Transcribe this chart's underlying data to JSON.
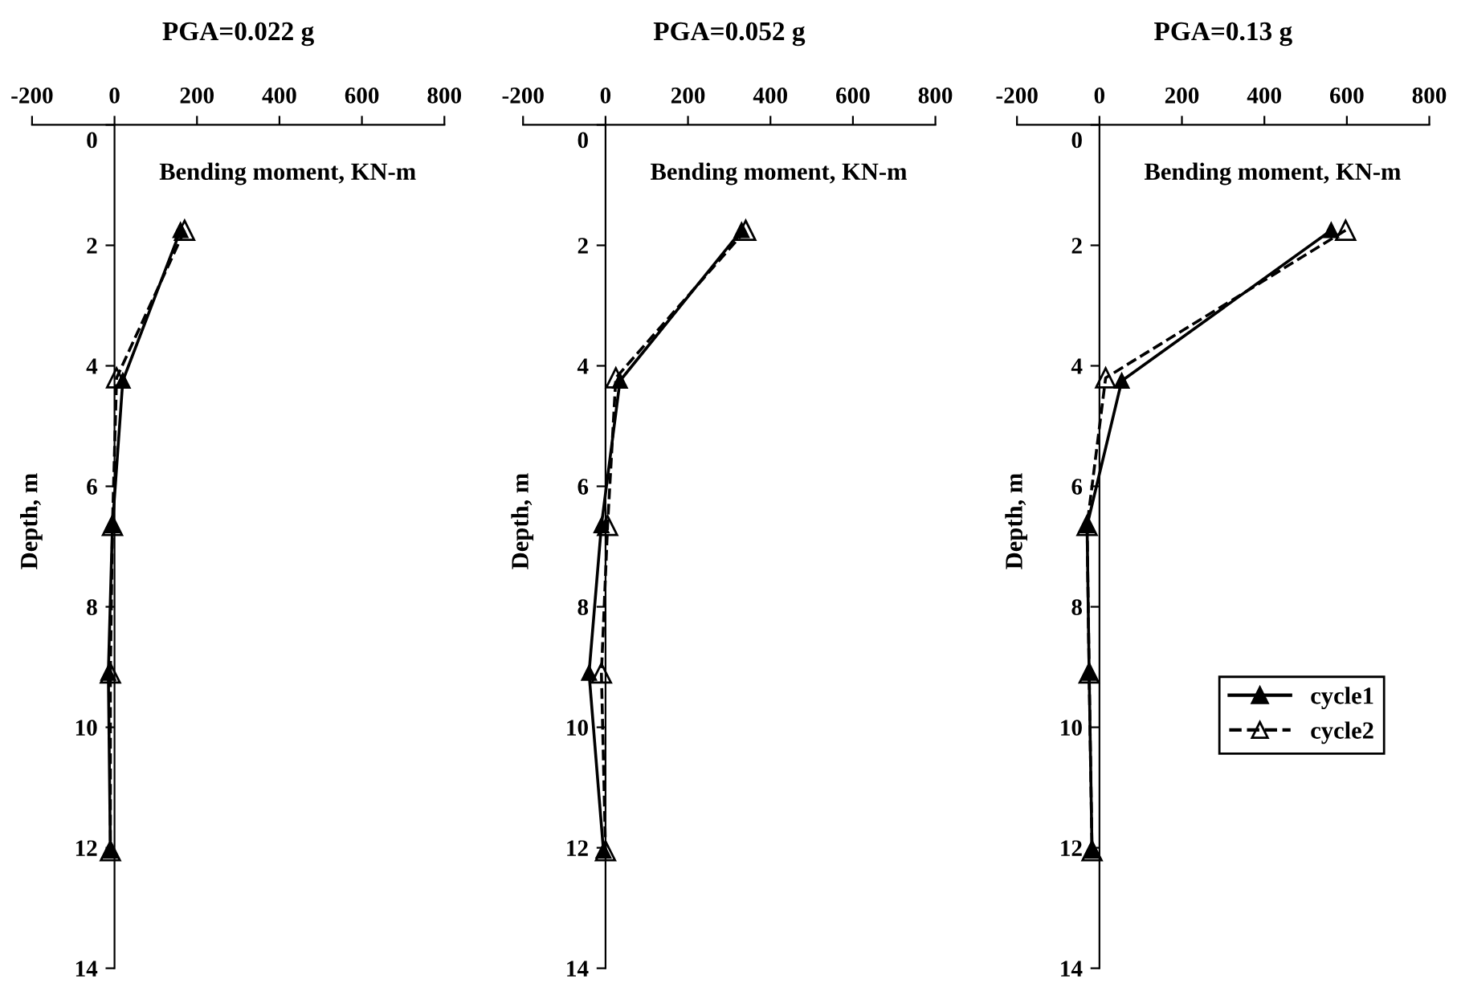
{
  "chart_data": [
    {
      "type": "line",
      "title": "PGA=0.022 g",
      "xlabel": "Bending moment, KN-m",
      "ylabel": "Depth, m",
      "xlim": [
        -200,
        800
      ],
      "xticks": [
        -200,
        0,
        200,
        400,
        600,
        800
      ],
      "ylim": [
        14,
        0
      ],
      "yticks": [
        0,
        2,
        4,
        6,
        8,
        10,
        12,
        14
      ],
      "marker": "triangle",
      "grid": false,
      "legend": false,
      "series": [
        {
          "color": "#000000",
          "line_style": "solid",
          "x": [
            160,
            20,
            -5,
            -15,
            -10
          ],
          "values": [
            1.75,
            4.25,
            6.65,
            9.1,
            12.05
          ]
        },
        {
          "color": "#000000",
          "line_style": "dashed",
          "x": [
            170,
            5,
            -5,
            -10,
            -10
          ],
          "values": [
            1.75,
            4.2,
            6.65,
            9.1,
            12.05
          ]
        }
      ]
    },
    {
      "type": "line",
      "title": "PGA=0.052 g",
      "xlabel": "Bending moment, KN-m",
      "ylabel": "Depth, m",
      "xlim": [
        -200,
        800
      ],
      "xticks": [
        -200,
        0,
        200,
        400,
        600,
        800
      ],
      "ylim": [
        14,
        0
      ],
      "yticks": [
        0,
        2,
        4,
        6,
        8,
        10,
        12,
        14
      ],
      "marker": "triangle",
      "grid": false,
      "legend": false,
      "series": [
        {
          "color": "#000000",
          "line_style": "solid",
          "x": [
            330,
            35,
            -10,
            -40,
            -5
          ],
          "values": [
            1.75,
            4.25,
            6.65,
            9.1,
            12.05
          ]
        },
        {
          "color": "#000000",
          "line_style": "dashed",
          "x": [
            340,
            25,
            5,
            -10,
            0
          ],
          "values": [
            1.75,
            4.2,
            6.65,
            9.1,
            12.05
          ]
        }
      ]
    },
    {
      "type": "line",
      "title": "PGA=0.13 g",
      "xlabel": "Bending moment, KN-m",
      "ylabel": "Depth, m",
      "xlim": [
        -200,
        800
      ],
      "xticks": [
        -200,
        0,
        200,
        400,
        600,
        800
      ],
      "ylim": [
        14,
        0
      ],
      "yticks": [
        0,
        2,
        4,
        6,
        8,
        10,
        12,
        14
      ],
      "marker": "triangle",
      "grid": false,
      "legend": "right",
      "series": [
        {
          "name": "cycle1",
          "color": "#000000",
          "line_style": "solid",
          "x": [
            562,
            54,
            -30,
            -25,
            -18
          ],
          "values": [
            1.75,
            4.25,
            6.65,
            9.1,
            12.05
          ]
        },
        {
          "name": "cycle2",
          "color": "#000000",
          "line_style": "dashed",
          "x": [
            597,
            15,
            -30,
            -25,
            -18
          ],
          "values": [
            1.75,
            4.2,
            6.65,
            9.1,
            12.05
          ]
        }
      ]
    }
  ]
}
